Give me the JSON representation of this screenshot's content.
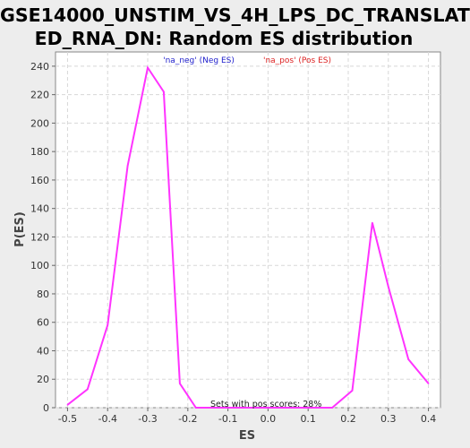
{
  "chart_data": {
    "type": "line",
    "title_line1": "GSE14000_UNSTIM_VS_4H_LPS_DC_TRANSLAT",
    "title_line2": "ED_RNA_DN: Random ES distribution",
    "xlabel": "ES",
    "ylabel": "P(ES)",
    "xlim": [
      -0.53,
      0.43
    ],
    "ylim": [
      0,
      250
    ],
    "xticks": [
      -0.5,
      -0.4,
      -0.3,
      -0.2,
      -0.1,
      0.0,
      0.1,
      0.2,
      0.3,
      0.4
    ],
    "xtick_labels": [
      "-0.5",
      "-0.4",
      "-0.3",
      "-0.2",
      "-0.1",
      "0.0",
      "0.1",
      "0.2",
      "0.3",
      "0.4"
    ],
    "yticks": [
      0,
      20,
      40,
      60,
      80,
      100,
      120,
      140,
      160,
      180,
      200,
      220,
      240
    ],
    "grid": true,
    "series": [
      {
        "color": "#ff33ff",
        "x": [
          -0.5,
          -0.45,
          -0.4,
          -0.35,
          -0.3,
          -0.26,
          -0.22,
          -0.18,
          -0.15,
          -0.1,
          -0.05,
          0.0,
          0.05,
          0.1,
          0.16,
          0.21,
          0.26,
          0.3,
          0.35,
          0.4
        ],
        "y": [
          2,
          13,
          58,
          170,
          239,
          222,
          17,
          0,
          0,
          0,
          0,
          0,
          0,
          0,
          0,
          12,
          130,
          85,
          34,
          17
        ]
      }
    ],
    "legend": [
      {
        "label": "'na_neg' (Neg ES)",
        "color": "#2222cc"
      },
      {
        "label": "'na_pos' (Pos ES)",
        "color": "#dd2222"
      }
    ],
    "annotation": "Sets with pos scores: 28%"
  }
}
